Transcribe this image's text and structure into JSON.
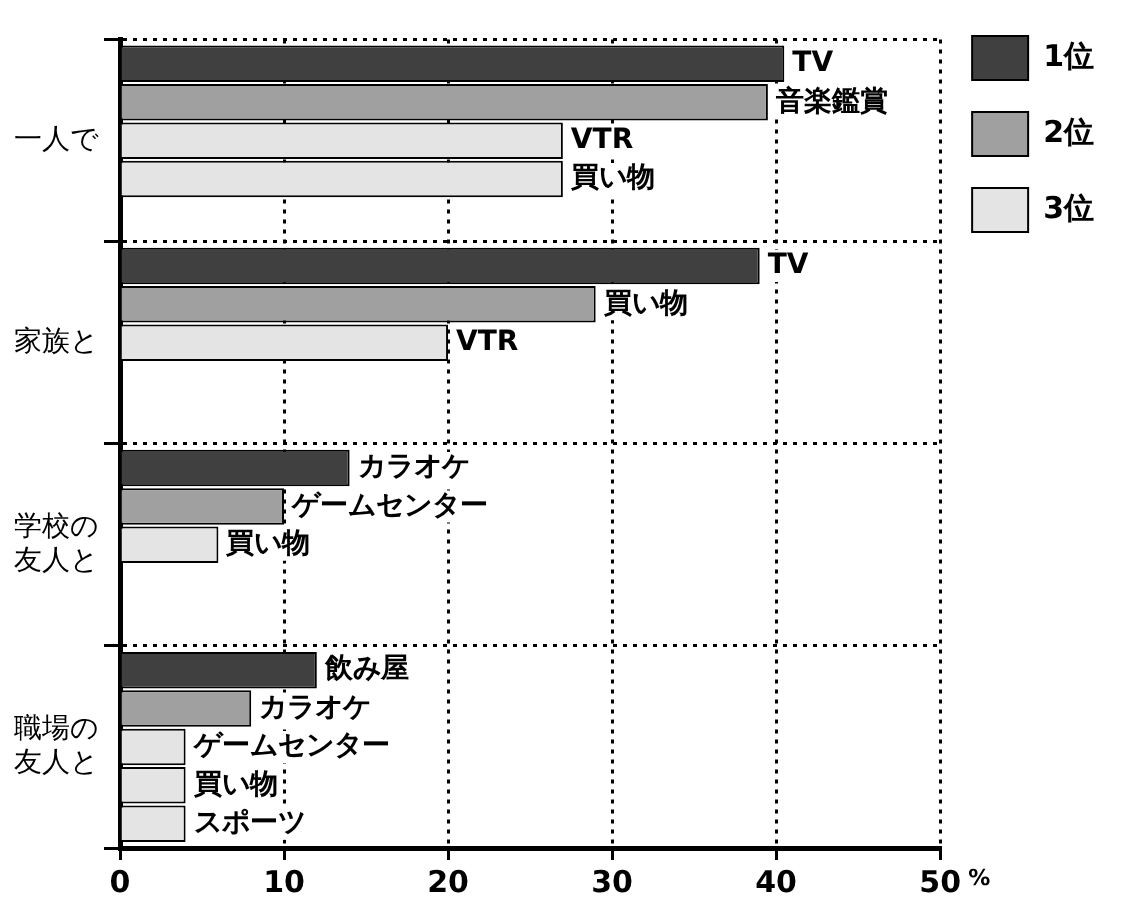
{
  "chart_data": {
    "type": "bar",
    "orientation": "horizontal",
    "categories": [
      "一人で",
      "家族と",
      "学校の友人と",
      "職場の友人と"
    ],
    "series": [
      {
        "name": "1位",
        "color": "#404040",
        "values": [
          40.5,
          39,
          14,
          12
        ],
        "value_labels": [
          "TV",
          "TV",
          "カラオケ",
          "飲み屋"
        ]
      },
      {
        "name": "2位",
        "color": "#a0a0a0",
        "values": [
          39.5,
          29,
          10,
          8
        ],
        "value_labels": [
          "音楽鑑賞",
          "買い物",
          "ゲームセンター",
          "カラオケ"
        ]
      },
      {
        "name": "3位",
        "color": "#e4e4e4",
        "values": [
          27,
          20,
          6,
          4
        ],
        "value_labels": [
          "VTR",
          "VTR",
          "買い物",
          "ゲームセンター"
        ]
      },
      {
        "color": "#e4e4e4",
        "values": [
          27,
          null,
          null,
          4
        ],
        "value_labels": [
          "買い物",
          null,
          null,
          "買い物"
        ]
      },
      {
        "color": "#e4e4e4",
        "values": [
          null,
          null,
          null,
          4
        ],
        "value_labels": [
          null,
          null,
          null,
          "スポーツ"
        ]
      }
    ],
    "xlabel": "%",
    "xlim": [
      0,
      50
    ],
    "xticks": [
      0,
      10,
      20,
      30,
      40,
      50
    ],
    "grid": true,
    "legend": "top right"
  }
}
